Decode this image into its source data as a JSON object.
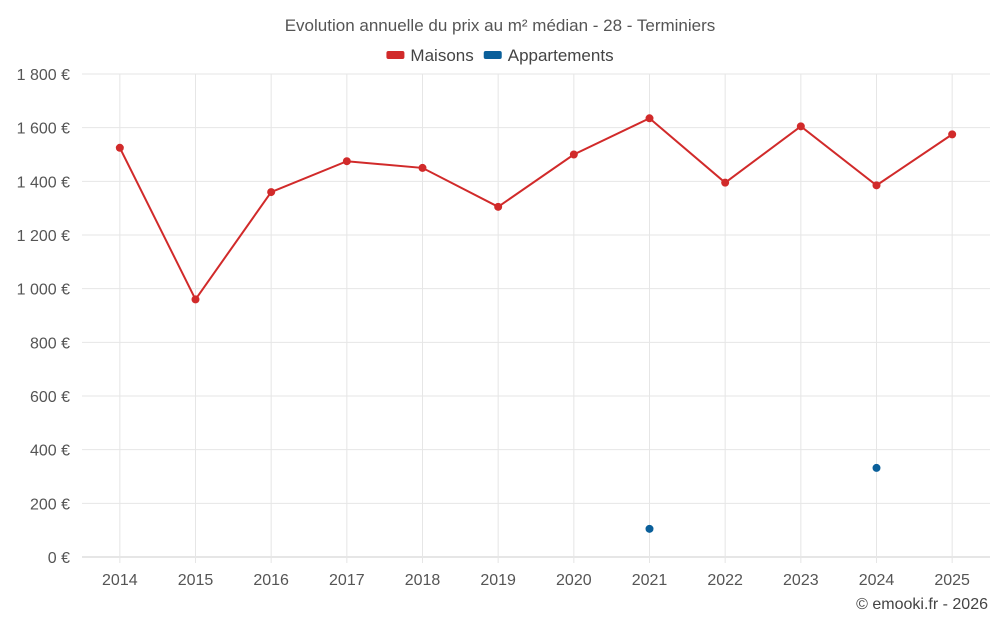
{
  "chart_data": {
    "type": "line",
    "title": "Evolution annuelle du prix au m² médian - 28 - Terminiers",
    "categories": [
      "2014",
      "2015",
      "2016",
      "2017",
      "2018",
      "2019",
      "2020",
      "2021",
      "2022",
      "2023",
      "2024",
      "2025"
    ],
    "ylim": [
      0,
      1800
    ],
    "yticks": [
      0,
      200,
      400,
      600,
      800,
      1000,
      1200,
      1400,
      1600,
      1800
    ],
    "ytick_labels": [
      "0 €",
      "200 €",
      "400 €",
      "600 €",
      "800 €",
      "1 000 €",
      "1 200 €",
      "1 400 €",
      "1 600 €",
      "1 800 €"
    ],
    "grid": true,
    "legend_position": "top-center",
    "series": [
      {
        "name": "Maisons",
        "color": "#d12a2a",
        "values": [
          1525,
          960,
          1360,
          1475,
          1450,
          1305,
          1500,
          1635,
          1395,
          1605,
          1385,
          1575
        ]
      },
      {
        "name": "Appartements",
        "color": "#0a5f9a",
        "values": [
          null,
          null,
          null,
          null,
          null,
          null,
          null,
          105,
          null,
          null,
          332,
          null
        ]
      }
    ]
  },
  "credit": "© emooki.fr - 2026"
}
